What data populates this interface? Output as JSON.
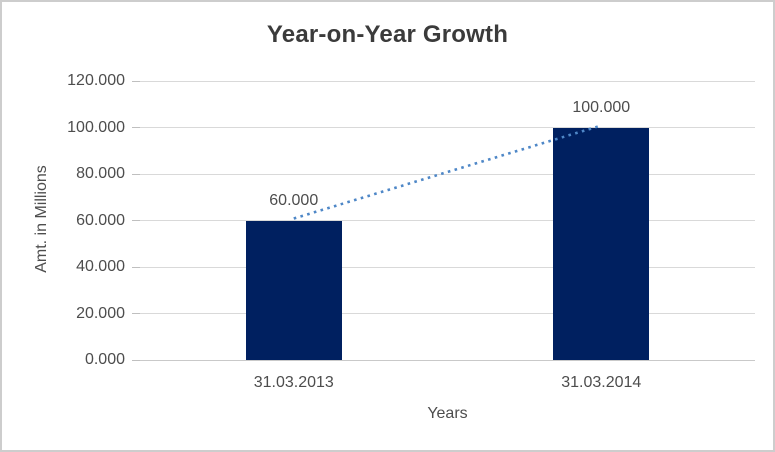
{
  "chart_data": {
    "type": "bar",
    "title": "Year-on-Year Growth",
    "categories": [
      "31.03.2013",
      "31.03.2014"
    ],
    "values": [
      60,
      100
    ],
    "data_labels": [
      "60.000",
      "100.000"
    ],
    "xlabel": "Years",
    "ylabel": "Amt. in Millions",
    "ylim": [
      0,
      120
    ],
    "ytick_step": 20,
    "ytick_labels": [
      "120.000",
      "100.000",
      "80.000",
      "60.000",
      "40.000",
      "20.000",
      "0.000"
    ],
    "grid": true,
    "legend": "none",
    "trendline": {
      "style": "dotted",
      "connects": "top centers of the two bars",
      "color": "#4E87C7"
    }
  },
  "colors": {
    "bar": "#002060",
    "trendline": "#4E87C7",
    "gridline": "#D9D9D9",
    "axis_line": "#C9C9C9",
    "tick": "#BFBFBF",
    "title_text": "#3B3B3B",
    "label_text": "#4D4D4D",
    "background": "#FFFFFF",
    "border": "#CDCDCD"
  }
}
